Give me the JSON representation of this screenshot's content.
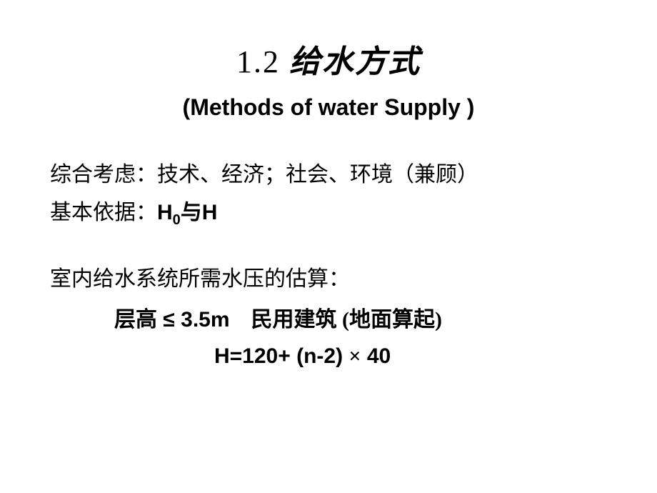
{
  "title": {
    "number": "1.2",
    "chinese": "给水方式",
    "english": "(Methods of water Supply )"
  },
  "content": {
    "line1": "综合考虑：技术、经济；社会、环境（兼顾）",
    "line2_prefix": "基本依据：",
    "line2_h0": "H",
    "line2_sub": "0",
    "line2_and": "与",
    "line2_h": "H",
    "line3": "室内给水系统所需水压的估算：",
    "line4_prefix": "层高",
    "line4_le": " ≤ ",
    "line4_val": "3.5m",
    "line4_gap": "　",
    "line4_suffix": "民用建筑 (地面算起)",
    "line5_formula": "H=120+ (n-2) ",
    "line5_times": "×",
    "line5_end": " 40"
  },
  "style": {
    "background": "#ffffff",
    "text_color": "#000000",
    "title_fontsize": 44,
    "subtitle_fontsize": 32,
    "body_fontsize": 30
  }
}
